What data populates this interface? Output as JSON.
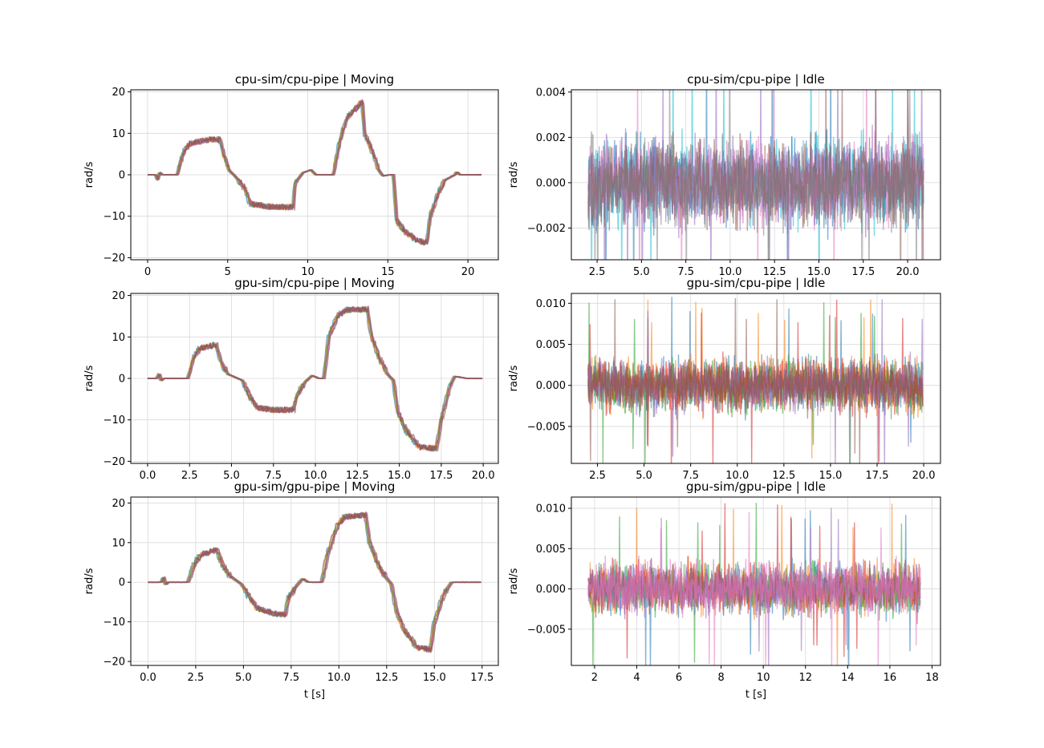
{
  "chart_data": [
    {
      "type": "line",
      "title": "cpu-sim/cpu-pipe | Moving",
      "xlabel": "",
      "ylabel": "rad/s",
      "xlim": [
        -1.05,
        21.9
      ],
      "ylim": [
        -20.5,
        20.5
      ],
      "xticks": [
        0,
        5,
        10,
        15,
        20
      ],
      "xticklabels": [
        "0",
        "5",
        "10",
        "15",
        "20"
      ],
      "yticks": [
        -20,
        -10,
        0,
        10,
        20
      ],
      "yticklabels": [
        "−20",
        "−10",
        "0",
        "10",
        "20"
      ],
      "grid": true,
      "noise_level": 0.7,
      "profile": [
        [
          0,
          0
        ],
        [
          0.5,
          0
        ],
        [
          0.62,
          -1.3
        ],
        [
          0.75,
          0.6
        ],
        [
          0.9,
          0
        ],
        [
          1.85,
          0
        ],
        [
          2.2,
          5
        ],
        [
          2.6,
          7.5
        ],
        [
          3.5,
          8.3
        ],
        [
          4.5,
          8.6
        ],
        [
          4.75,
          5
        ],
        [
          5.1,
          1
        ],
        [
          5.5,
          -0.5
        ],
        [
          6.1,
          -3.5
        ],
        [
          6.4,
          -7
        ],
        [
          7.5,
          -7.7
        ],
        [
          8.6,
          -7.8
        ],
        [
          9.1,
          -7.8
        ],
        [
          9.2,
          -2
        ],
        [
          9.7,
          0.5
        ],
        [
          10.2,
          1.2
        ],
        [
          10.5,
          0
        ],
        [
          11.6,
          0
        ],
        [
          12.05,
          9
        ],
        [
          12.5,
          14
        ],
        [
          13.4,
          17.6
        ],
        [
          13.55,
          10
        ],
        [
          14.1,
          5
        ],
        [
          14.45,
          1
        ],
        [
          14.7,
          -0.3
        ],
        [
          15.1,
          0
        ],
        [
          15.35,
          0
        ],
        [
          15.55,
          -11
        ],
        [
          16.1,
          -13.8
        ],
        [
          16.9,
          -16
        ],
        [
          17.45,
          -16.3
        ],
        [
          17.65,
          -10
        ],
        [
          18.2,
          -4
        ],
        [
          18.6,
          -1.2
        ],
        [
          19.2,
          0
        ],
        [
          19.3,
          0.7
        ],
        [
          19.5,
          0
        ],
        [
          20.85,
          0
        ]
      ],
      "series": [
        {
          "color": "#1f77b4"
        },
        {
          "color": "#ff7f0e"
        },
        {
          "color": "#2ca02c"
        },
        {
          "color": "#d62728"
        },
        {
          "color": "#9467bd"
        },
        {
          "color": "#8c564b"
        }
      ]
    },
    {
      "type": "line",
      "title": "cpu-sim/cpu-pipe | Idle",
      "xlabel": "",
      "ylabel": "",
      "xlim": [
        1.05,
        21.85
      ],
      "ylim": [
        -0.0034,
        0.0041
      ],
      "xticks": [
        2.5,
        5,
        7.5,
        10,
        12.5,
        15,
        17.5,
        20
      ],
      "xticklabels": [
        "2.5",
        "5.0",
        "7.5",
        "10.0",
        "12.5",
        "15.0",
        "17.5",
        "20.0"
      ],
      "yticks": [
        -0.002,
        0,
        0.002,
        0.004
      ],
      "yticklabels": [
        "−0.002",
        "0.000",
        "0.002",
        "0.004"
      ],
      "grid": true,
      "x_start": 2.0,
      "x_end": 20.9,
      "noise_amplitude": 0.0027,
      "series": [
        {
          "color": "#17becf"
        },
        {
          "color": "#1f77b4"
        },
        {
          "color": "#9467bd"
        },
        {
          "color": "#e377c2"
        },
        {
          "color": "#8c564b"
        },
        {
          "color": "#7f7f7f"
        }
      ]
    },
    {
      "type": "line",
      "title": "gpu-sim/cpu-pipe | Moving",
      "xlabel": "",
      "ylabel": "rad/s",
      "xlim": [
        -1.0,
        20.9
      ],
      "ylim": [
        -20.5,
        20.5
      ],
      "xticks": [
        0,
        2.5,
        5,
        7.5,
        10,
        12.5,
        15,
        17.5,
        20
      ],
      "xticklabels": [
        "0.0",
        "2.5",
        "5.0",
        "7.5",
        "10.0",
        "12.5",
        "15.0",
        "17.5",
        "20.0"
      ],
      "yticks": [
        -20,
        -10,
        0,
        10,
        20
      ],
      "yticklabels": [
        "−20",
        "−10",
        "0",
        "10",
        "20"
      ],
      "grid": true,
      "noise_level": 0.7,
      "profile": [
        [
          0,
          0
        ],
        [
          0.55,
          0
        ],
        [
          0.7,
          1.2
        ],
        [
          0.8,
          -0.6
        ],
        [
          0.95,
          0
        ],
        [
          2.4,
          0
        ],
        [
          2.75,
          5
        ],
        [
          3.1,
          7.2
        ],
        [
          4.1,
          8.2
        ],
        [
          4.35,
          4
        ],
        [
          4.8,
          1
        ],
        [
          5.2,
          0.3
        ],
        [
          5.65,
          -0.5
        ],
        [
          6.05,
          -4
        ],
        [
          6.5,
          -7
        ],
        [
          7.5,
          -7.6
        ],
        [
          8.7,
          -7.6
        ],
        [
          8.9,
          -4
        ],
        [
          9.4,
          -0.8
        ],
        [
          9.8,
          0.7
        ],
        [
          10.2,
          0
        ],
        [
          10.5,
          0
        ],
        [
          10.8,
          10
        ],
        [
          11.3,
          15
        ],
        [
          11.8,
          16.5
        ],
        [
          13.1,
          16.7
        ],
        [
          13.35,
          10
        ],
        [
          13.8,
          5
        ],
        [
          14.3,
          1
        ],
        [
          14.65,
          -0.5
        ],
        [
          14.9,
          -8
        ],
        [
          15.4,
          -12.5
        ],
        [
          16.2,
          -16.5
        ],
        [
          17.2,
          -16.9
        ],
        [
          17.5,
          -10
        ],
        [
          18.0,
          -2
        ],
        [
          18.3,
          0.5
        ],
        [
          18.6,
          0.3
        ],
        [
          19.0,
          0
        ],
        [
          19.95,
          0
        ]
      ],
      "series": [
        {
          "color": "#1f77b4"
        },
        {
          "color": "#ff7f0e"
        },
        {
          "color": "#2ca02c"
        },
        {
          "color": "#d62728"
        },
        {
          "color": "#9467bd"
        },
        {
          "color": "#8c564b"
        }
      ]
    },
    {
      "type": "line",
      "title": "gpu-sim/cpu-pipe | Idle",
      "xlabel": "",
      "ylabel": "",
      "xlim": [
        1.1,
        20.9
      ],
      "ylim": [
        -0.0095,
        0.0112
      ],
      "xticks": [
        2.5,
        5,
        7.5,
        10,
        12.5,
        15,
        17.5,
        20
      ],
      "xticklabels": [
        "2.5",
        "5.0",
        "7.5",
        "10.0",
        "12.5",
        "15.0",
        "17.5",
        "20.0"
      ],
      "yticks": [
        -0.005,
        0,
        0.005,
        0.01
      ],
      "yticklabels": [
        "−0.005",
        "0.000",
        "0.005",
        "0.010"
      ],
      "grid": true,
      "x_start": 2.0,
      "x_end": 19.95,
      "noise_amplitude": 0.0045,
      "series": [
        {
          "color": "#1f77b4"
        },
        {
          "color": "#ff7f0e"
        },
        {
          "color": "#2ca02c"
        },
        {
          "color": "#d62728"
        },
        {
          "color": "#9467bd"
        },
        {
          "color": "#8c564b"
        }
      ]
    },
    {
      "type": "line",
      "title": "gpu-sim/gpu-pipe | Moving",
      "xlabel": "t [s]",
      "ylabel": "rad/s",
      "xlim": [
        -0.9,
        18.35
      ],
      "ylim": [
        -21,
        21.5
      ],
      "xticks": [
        0,
        2.5,
        5,
        7.5,
        10,
        12.5,
        15,
        17.5
      ],
      "xticklabels": [
        "0.0",
        "2.5",
        "5.0",
        "7.5",
        "10.0",
        "12.5",
        "15.0",
        "17.5"
      ],
      "yticks": [
        -20,
        -10,
        0,
        10,
        20
      ],
      "yticklabels": [
        "−20",
        "−10",
        "0",
        "10",
        "20"
      ],
      "grid": true,
      "noise_level": 0.7,
      "profile": [
        [
          0,
          0
        ],
        [
          0.7,
          0
        ],
        [
          0.82,
          1.3
        ],
        [
          0.92,
          -0.6
        ],
        [
          1.05,
          0
        ],
        [
          2.1,
          0
        ],
        [
          2.45,
          5
        ],
        [
          2.8,
          7
        ],
        [
          3.6,
          8.2
        ],
        [
          3.85,
          5
        ],
        [
          4.2,
          2
        ],
        [
          4.6,
          0.5
        ],
        [
          4.9,
          -0.5
        ],
        [
          5.2,
          -3
        ],
        [
          5.7,
          -6.5
        ],
        [
          6.5,
          -7.8
        ],
        [
          7.2,
          -8.2
        ],
        [
          7.35,
          -4
        ],
        [
          7.8,
          -0.8
        ],
        [
          8.1,
          0.9
        ],
        [
          8.4,
          0
        ],
        [
          9.1,
          0
        ],
        [
          9.4,
          7
        ],
        [
          9.9,
          14
        ],
        [
          10.3,
          16.5
        ],
        [
          11.4,
          17
        ],
        [
          11.6,
          10
        ],
        [
          12.1,
          4
        ],
        [
          12.5,
          1
        ],
        [
          12.75,
          -0.5
        ],
        [
          13.0,
          -7
        ],
        [
          13.4,
          -12
        ],
        [
          14.1,
          -16.5
        ],
        [
          14.8,
          -17
        ],
        [
          15.0,
          -10
        ],
        [
          15.5,
          -3
        ],
        [
          15.9,
          0
        ],
        [
          17.45,
          0
        ]
      ],
      "series": [
        {
          "color": "#1f77b4"
        },
        {
          "color": "#ff7f0e"
        },
        {
          "color": "#2ca02c"
        },
        {
          "color": "#d62728"
        },
        {
          "color": "#9467bd"
        },
        {
          "color": "#8c564b"
        }
      ]
    },
    {
      "type": "line",
      "title": "gpu-sim/gpu-pipe | Idle",
      "xlabel": "t [s]",
      "ylabel": "",
      "xlim": [
        0.9,
        18.4
      ],
      "ylim": [
        -0.0095,
        0.0114
      ],
      "xticks": [
        2,
        4,
        6,
        8,
        10,
        12,
        14,
        16,
        18
      ],
      "xticklabels": [
        "2",
        "4",
        "6",
        "8",
        "10",
        "12",
        "14",
        "16",
        "18"
      ],
      "yticks": [
        -0.005,
        0,
        0.005,
        0.01
      ],
      "yticklabels": [
        "−0.005",
        "0.000",
        "0.005",
        "0.010"
      ],
      "grid": true,
      "x_start": 1.7,
      "x_end": 17.45,
      "noise_amplitude": 0.0045,
      "series": [
        {
          "color": "#1f77b4"
        },
        {
          "color": "#ff7f0e"
        },
        {
          "color": "#2ca02c"
        },
        {
          "color": "#d62728"
        },
        {
          "color": "#9467bd"
        },
        {
          "color": "#e377c2"
        }
      ]
    }
  ]
}
